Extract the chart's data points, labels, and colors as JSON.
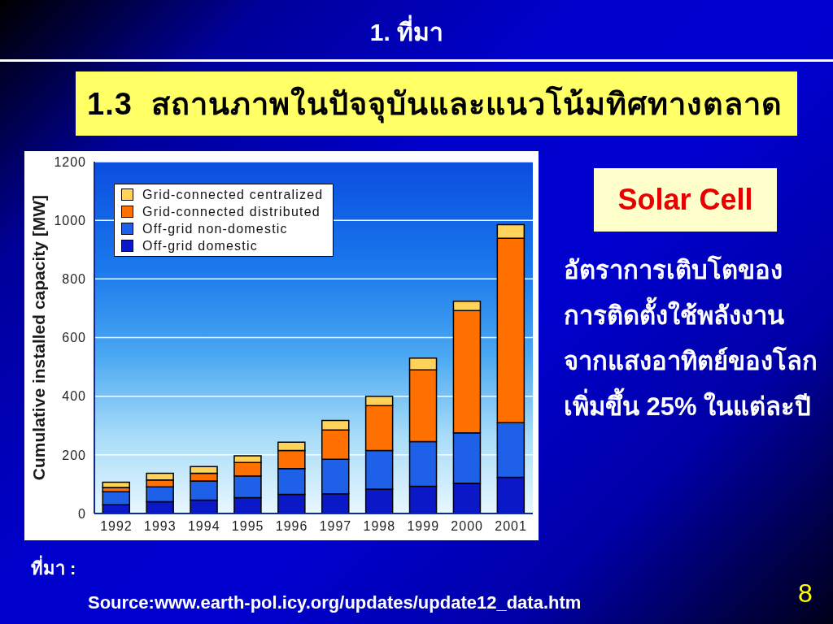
{
  "chart_data": {
    "type": "bar",
    "title": "1. ที่มา",
    "subtitle": "1.3  สถานภาพในปัจจุบันและแนวโน้มทิศทางตลาด",
    "ylabel": "Cumulative installed capacity [MW]",
    "categories": [
      "1992",
      "1993",
      "1994",
      "1995",
      "1996",
      "1997",
      "1998",
      "1999",
      "2000",
      "2001"
    ],
    "stacked": true,
    "series": [
      {
        "name": "Off-grid domestic",
        "color": "#0a18c8",
        "values": [
          30,
          40,
          46,
          54,
          65,
          67,
          83,
          93,
          103,
          123
        ]
      },
      {
        "name": "Off-grid non-domestic",
        "color": "#1e60e8",
        "values": [
          44,
          51,
          65,
          74,
          88,
          118,
          132,
          152,
          172,
          187
        ]
      },
      {
        "name": "Grid-connected distributed",
        "color": "#ff7000",
        "values": [
          15,
          23,
          26,
          46,
          62,
          100,
          153,
          245,
          417,
          629
        ]
      },
      {
        "name": "Grid-connected centralized",
        "color": "#ffd35a",
        "values": [
          18,
          23,
          23,
          23,
          28,
          32,
          32,
          40,
          32,
          46
        ]
      }
    ],
    "ylim": [
      0,
      1200
    ],
    "yticks": [
      0,
      200,
      400,
      600,
      800,
      1000,
      1200
    ],
    "grid": "y",
    "legend": "top left",
    "annotations": [
      "Solar Cell",
      "อัตราการเติบโตของ\nการติดตั้งใช้พลังงาน\nจากแสงอาทิตย์ของโลก\nเพิ่มขึ้น 25% ในแต่ละปี",
      "ที่มา :",
      "Source:www.earth-pol.icy.org/updates/update12_data.htm",
      "8"
    ]
  }
}
